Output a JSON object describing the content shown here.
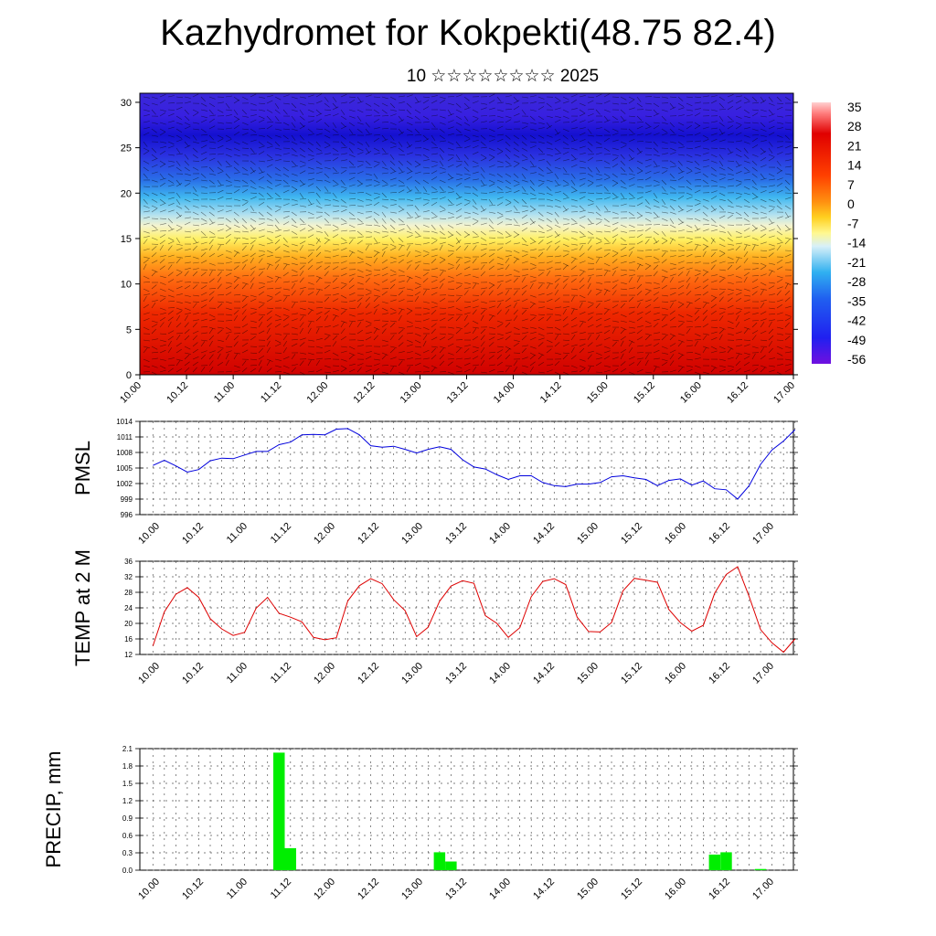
{
  "title": "Kazhydromet for Kokpekti(48.75 82.4)",
  "subtitle": "10 ☆☆☆☆☆☆☆☆ 2025",
  "time_labels": [
    "10.00",
    "10.12",
    "11.00",
    "11.12",
    "12.00",
    "12.12",
    "13.00",
    "13.12",
    "14.00",
    "14.12",
    "15.00",
    "15.12",
    "16.00",
    "16.12",
    "17.00"
  ],
  "chart_data": [
    {
      "type": "heatmap",
      "title": "",
      "xlabel": "",
      "ylabel": "",
      "x": [
        "10.00",
        "10.12",
        "11.00",
        "11.12",
        "12.00",
        "12.12",
        "13.00",
        "13.12",
        "14.00",
        "14.12",
        "15.00",
        "15.12",
        "16.00",
        "16.12",
        "17.00"
      ],
      "y_ticks": [
        0,
        5,
        10,
        15,
        20,
        25,
        30
      ],
      "ylim": [
        0,
        31
      ],
      "colorbar": {
        "labels": [
          "35",
          "28",
          "21",
          "14",
          "7",
          "0",
          "-7",
          "-14",
          "-21",
          "-28",
          "-35",
          "-42",
          "-49",
          "-56"
        ],
        "range": [
          -63,
          42
        ]
      },
      "wind_barbs": true
    },
    {
      "type": "line",
      "ylabel": "PMSL",
      "y_ticks": [
        "996",
        "999",
        "1002",
        "1005",
        "1008",
        "1011",
        "1014"
      ],
      "ylim": [
        996,
        1014
      ],
      "color": "#0000dd",
      "values": [
        1005.5,
        1006.5,
        1005.4,
        1004.2,
        1004.7,
        1006.4,
        1006.9,
        1006.8,
        1007.5,
        1008.2,
        1008.2,
        1009.5,
        1010.0,
        1011.4,
        1011.5,
        1011.4,
        1012.5,
        1012.6,
        1011.4,
        1009.3,
        1009.0,
        1009.2,
        1008.6,
        1007.9,
        1008.6,
        1009.1,
        1008.6,
        1006.6,
        1005.2,
        1004.8,
        1003.7,
        1002.8,
        1003.5,
        1003.5,
        1002.2,
        1001.6,
        1001.4,
        1001.9,
        1001.9,
        1002.2,
        1003.3,
        1003.5,
        1003.1,
        1002.8,
        1001.6,
        1002.6,
        1002.9,
        1001.7,
        1002.5,
        1001.0,
        1000.8,
        999.0,
        1001.6,
        1005.7,
        1008.5,
        1010.2,
        1012.4
      ]
    },
    {
      "type": "line",
      "ylabel": "TEMP at 2 M",
      "y_ticks": [
        "12",
        "16",
        "20",
        "24",
        "28",
        "32",
        "36"
      ],
      "ylim": [
        12,
        36
      ],
      "color": "#dd0000",
      "values": [
        14.2,
        23.0,
        27.5,
        29.2,
        26.7,
        21.2,
        18.6,
        16.9,
        17.7,
        23.9,
        26.7,
        22.6,
        21.6,
        20.4,
        16.4,
        15.8,
        16.3,
        25.8,
        29.7,
        31.5,
        30.2,
        26.1,
        23.3,
        16.6,
        19.0,
        25.7,
        29.6,
        31.0,
        30.3,
        22.0,
        20.0,
        16.4,
        18.9,
        26.9,
        30.8,
        31.5,
        30.0,
        21.6,
        17.9,
        17.8,
        20.2,
        28.4,
        31.6,
        31.1,
        30.6,
        23.6,
        20.2,
        18.0,
        19.5,
        27.8,
        32.6,
        34.6,
        26.9,
        18.4,
        15.0,
        12.6,
        16.0
      ]
    },
    {
      "type": "bar",
      "ylabel": "PRECIP, mm",
      "y_ticks": [
        "0.0",
        "0.3",
        "0.6",
        "0.9",
        "1.2",
        "1.5",
        "1.8",
        "2.1"
      ],
      "ylim": [
        0,
        2.1
      ],
      "color": "#00ee00",
      "bars": [
        {
          "step": 11,
          "value": 2.03
        },
        {
          "step": 12,
          "value": 0.38
        },
        {
          "step": 25,
          "value": 0.31
        },
        {
          "step": 26,
          "value": 0.15
        },
        {
          "step": 49,
          "value": 0.27
        },
        {
          "step": 50,
          "value": 0.31
        },
        {
          "step": 53,
          "value": 0.02
        }
      ]
    }
  ]
}
